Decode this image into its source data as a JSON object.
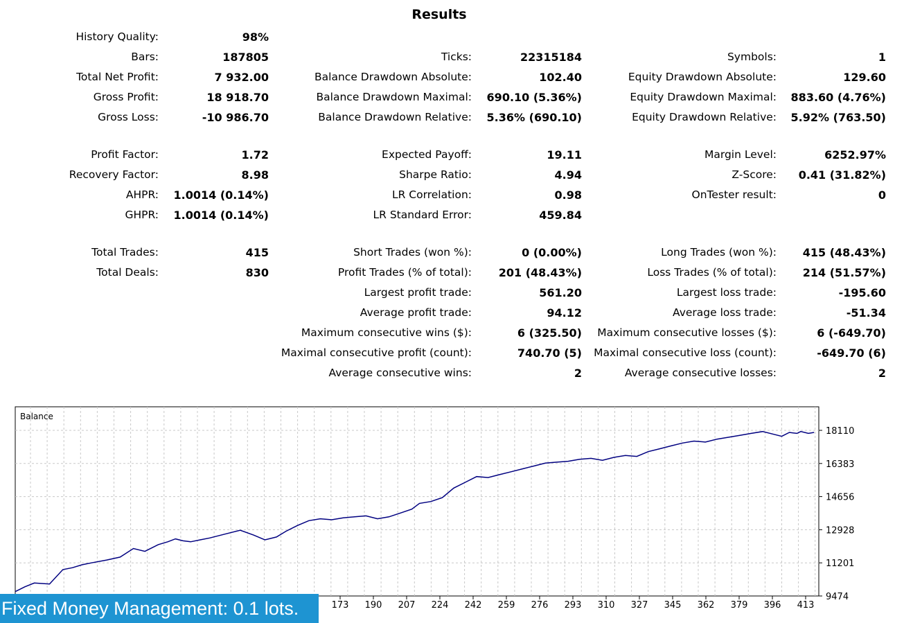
{
  "title": "Results",
  "rows": [
    {
      "y": 54,
      "c1": [
        "History Quality:",
        "98%"
      ]
    },
    {
      "y": 83,
      "c1": [
        "Bars:",
        "187805"
      ],
      "c2": [
        "Ticks:",
        "22315184"
      ],
      "c3": [
        "Symbols:",
        "1"
      ]
    },
    {
      "y": 112,
      "c1": [
        "Total Net Profit:",
        "7 932.00"
      ],
      "c2": [
        "Balance Drawdown Absolute:",
        "102.40"
      ],
      "c3": [
        "Equity Drawdown Absolute:",
        "129.60"
      ]
    },
    {
      "y": 141,
      "c1": [
        "Gross Profit:",
        "18 918.70"
      ],
      "c2": [
        "Balance Drawdown Maximal:",
        "690.10 (5.36%)"
      ],
      "c3": [
        "Equity Drawdown Maximal:",
        "883.60 (4.76%)"
      ]
    },
    {
      "y": 170,
      "c1": [
        "Gross Loss:",
        "-10 986.70"
      ],
      "c2": [
        "Balance Drawdown Relative:",
        "5.36% (690.10)"
      ],
      "c3": [
        "Equity Drawdown Relative:",
        "5.92% (763.50)"
      ]
    },
    {
      "y": 224,
      "c1": [
        "Profit Factor:",
        "1.72"
      ],
      "c2": [
        "Expected Payoff:",
        "19.11"
      ],
      "c3": [
        "Margin Level:",
        "6252.97%"
      ]
    },
    {
      "y": 253,
      "c1": [
        "Recovery Factor:",
        "8.98"
      ],
      "c2": [
        "Sharpe Ratio:",
        "4.94"
      ],
      "c3": [
        "Z-Score:",
        "0.41 (31.82%)"
      ]
    },
    {
      "y": 282,
      "c1": [
        "AHPR:",
        "1.0014 (0.14%)"
      ],
      "c2": [
        "LR Correlation:",
        "0.98"
      ],
      "c3": [
        "OnTester result:",
        "0"
      ]
    },
    {
      "y": 311,
      "c1": [
        "GHPR:",
        "1.0014 (0.14%)"
      ],
      "c2": [
        "LR Standard Error:",
        "459.84"
      ]
    },
    {
      "y": 365,
      "c1": [
        "Total Trades:",
        "415"
      ],
      "c2": [
        "Short Trades (won %):",
        "0 (0.00%)"
      ],
      "c3": [
        "Long Trades (won %):",
        "415 (48.43%)"
      ]
    },
    {
      "y": 394,
      "c1": [
        "Total Deals:",
        "830"
      ],
      "c2": [
        "Profit Trades (% of total):",
        "201 (48.43%)"
      ],
      "c3": [
        "Loss Trades (% of total):",
        "214 (51.57%)"
      ]
    },
    {
      "y": 423,
      "c2": [
        "Largest profit trade:",
        "561.20"
      ],
      "c3": [
        "Largest loss trade:",
        "-195.60"
      ]
    },
    {
      "y": 452,
      "c2": [
        "Average profit trade:",
        "94.12"
      ],
      "c3": [
        "Average loss trade:",
        "-51.34"
      ]
    },
    {
      "y": 481,
      "c2": [
        "Maximum consecutive wins ($):",
        "6 (325.50)"
      ],
      "c3": [
        "Maximum consecutive losses ($):",
        "6 (-649.70)"
      ]
    },
    {
      "y": 510,
      "c2": [
        "Maximal consecutive profit (count):",
        "740.70 (5)"
      ],
      "c3": [
        "Maximal consecutive loss (count):",
        "-649.70 (6)"
      ]
    },
    {
      "y": 539,
      "c2": [
        "Average consecutive wins:",
        "2"
      ],
      "c3": [
        "Average consecutive losses:",
        "2"
      ]
    }
  ],
  "chart_data": {
    "type": "line",
    "legend": "Balance",
    "series": [
      {
        "name": "Balance",
        "color": "#000080",
        "x": [
          0,
          5,
          10,
          18,
          25,
          30,
          35,
          40,
          48,
          55,
          62,
          68,
          75,
          80,
          84,
          88,
          92,
          97,
          102,
          110,
          118,
          125,
          131,
          137,
          142,
          148,
          154,
          160,
          166,
          172,
          178,
          184,
          190,
          196,
          202,
          208,
          212,
          218,
          224,
          230,
          236,
          242,
          248,
          254,
          260,
          266,
          272,
          278,
          284,
          290,
          296,
          302,
          308,
          314,
          320,
          326,
          332,
          338,
          344,
          350,
          356,
          362,
          368,
          374,
          380,
          386,
          392,
          398,
          402,
          406,
          410,
          412,
          416,
          419
        ],
        "y": [
          9700,
          9950,
          10150,
          10100,
          10850,
          10950,
          11100,
          11200,
          11350,
          11500,
          11950,
          11800,
          12150,
          12300,
          12450,
          12350,
          12300,
          12400,
          12500,
          12700,
          12900,
          12650,
          12400,
          12550,
          12850,
          13150,
          13400,
          13500,
          13450,
          13550,
          13600,
          13650,
          13500,
          13600,
          13800,
          14000,
          14300,
          14400,
          14600,
          15100,
          15400,
          15700,
          15650,
          15800,
          15950,
          16100,
          16250,
          16400,
          16450,
          16500,
          16600,
          16650,
          16550,
          16700,
          16800,
          16750,
          17000,
          17150,
          17300,
          17450,
          17550,
          17500,
          17650,
          17750,
          17850,
          17950,
          18050,
          17900,
          17800,
          18000,
          17950,
          18050,
          17950,
          18000
        ]
      }
    ],
    "x_ticks": [
      "173",
      "190",
      "207",
      "224",
      "242",
      "259",
      "276",
      "293",
      "310",
      "327",
      "345",
      "362",
      "379",
      "396",
      "413"
    ],
    "y_ticks": [
      "18110",
      "16383",
      "14656",
      "12928",
      "11201",
      "9474"
    ],
    "ylim": [
      9474,
      18110
    ],
    "xlim": [
      0,
      420
    ],
    "grid": true
  },
  "footer": {
    "banner": "Fixed Money Management: 0.1 lots."
  }
}
